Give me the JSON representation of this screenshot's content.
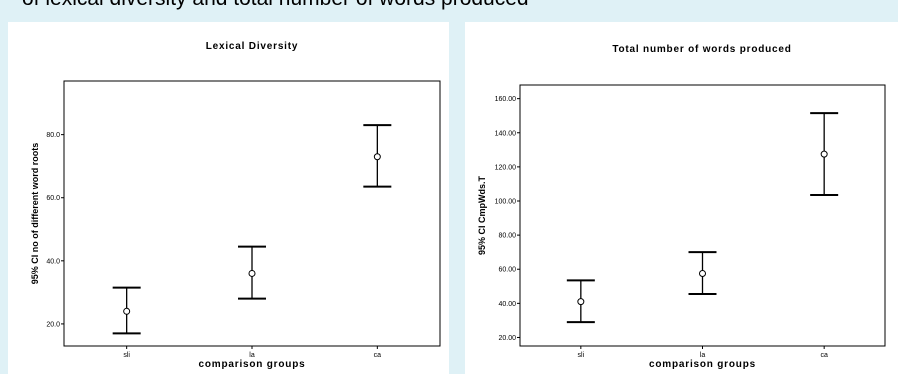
{
  "caption": "of lexical diversity and total number of words produced",
  "chart_data": [
    {
      "type": "errorbar",
      "title": "Lexical Diversity",
      "xlabel": "comparison groups",
      "ylabel": "95% CI no of different word roots",
      "categories": [
        "sli",
        "la",
        "ca"
      ],
      "mean": [
        24.0,
        36.0,
        73.0
      ],
      "lower": [
        17.0,
        28.0,
        63.5
      ],
      "upper": [
        31.5,
        44.5,
        83.0
      ],
      "yticks": [
        "20.0",
        "40.0",
        "60.0",
        "80.0"
      ],
      "ytick_values": [
        20,
        40,
        60,
        80
      ],
      "ylim": [
        13,
        97
      ],
      "grid": false
    },
    {
      "type": "errorbar",
      "title": "Total number of words produced",
      "xlabel": "comparison groups",
      "ylabel": "95% CI CmpWds.T",
      "categories": [
        "sli",
        "la",
        "ca"
      ],
      "mean": [
        41.0,
        57.5,
        127.5
      ],
      "lower": [
        29.0,
        45.5,
        103.5
      ],
      "upper": [
        53.5,
        70.0,
        151.5
      ],
      "yticks": [
        "20.00",
        "40.00",
        "60.00",
        "80.00",
        "100.00",
        "120.00",
        "140.00",
        "160.00"
      ],
      "ytick_values": [
        20,
        40,
        60,
        80,
        100,
        120,
        140,
        160
      ],
      "ylim": [
        15,
        168
      ],
      "grid": false
    }
  ]
}
